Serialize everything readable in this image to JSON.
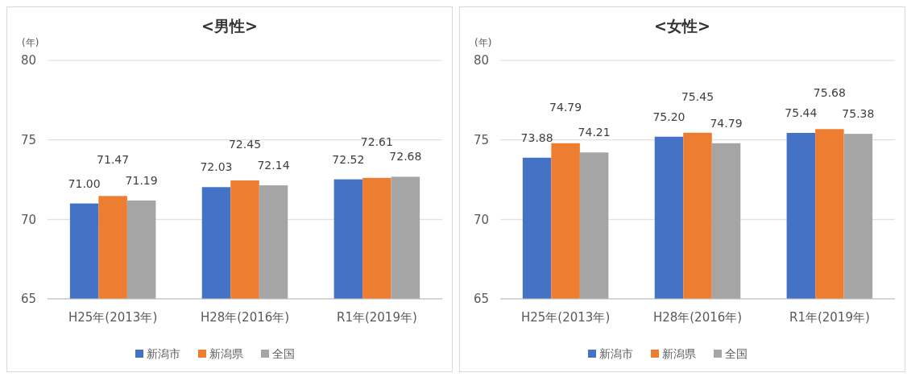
{
  "chart_data": [
    {
      "type": "bar",
      "title": "<男性>",
      "ylabel": "(年)",
      "categories": [
        "H25年(2013年)",
        "H28年(2016年)",
        "R1年(2019年)"
      ],
      "ylim": [
        65,
        80
      ],
      "yticks": [
        65,
        70,
        75,
        80
      ],
      "grid": "y",
      "legend": "bottom",
      "series": [
        {
          "name": "新潟市",
          "color": "#4472c4",
          "values": [
            71.0,
            72.03,
            72.52
          ],
          "value_labels": [
            "71.00",
            "72.03",
            "72.52"
          ]
        },
        {
          "name": "新潟県",
          "color": "#ed7d31",
          "values": [
            71.47,
            72.45,
            72.61
          ],
          "value_labels": [
            "71.47",
            "72.45",
            "72.61"
          ]
        },
        {
          "name": "全国",
          "color": "#a5a5a5",
          "values": [
            71.19,
            72.14,
            72.68
          ],
          "value_labels": [
            "71.19",
            "72.14",
            "72.68"
          ]
        }
      ]
    },
    {
      "type": "bar",
      "title": "<女性>",
      "ylabel": "(年)",
      "categories": [
        "H25年(2013年)",
        "H28年(2016年)",
        "R1年(2019年)"
      ],
      "ylim": [
        65,
        80
      ],
      "yticks": [
        65,
        70,
        75,
        80
      ],
      "grid": "y",
      "legend": "bottom",
      "series": [
        {
          "name": "新潟市",
          "color": "#4472c4",
          "values": [
            73.88,
            75.2,
            75.44
          ],
          "value_labels": [
            "73.88",
            "75.20",
            "75.44"
          ]
        },
        {
          "name": "新潟県",
          "color": "#ed7d31",
          "values": [
            74.79,
            75.45,
            75.68
          ],
          "value_labels": [
            "74.79",
            "75.45",
            "75.68"
          ]
        },
        {
          "name": "全国",
          "color": "#a5a5a5",
          "values": [
            74.21,
            74.79,
            75.38
          ],
          "value_labels": [
            "74.21",
            "74.79",
            "75.38"
          ]
        }
      ]
    }
  ]
}
